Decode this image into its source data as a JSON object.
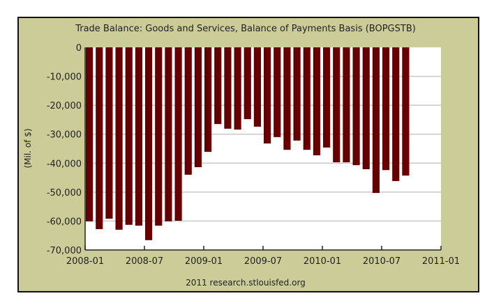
{
  "chart_data": {
    "type": "bar",
    "title": "Trade Balance: Goods and Services, Balance of Payments Basis (BOPGSTB)",
    "ylabel": "(Mil. of $)",
    "xlabel": "",
    "footer": "2011 research.stlouisfed.org",
    "ylim": [
      -70000,
      0
    ],
    "yticks": [
      "0",
      "-10,000",
      "-20,000",
      "-30,000",
      "-40,000",
      "-50,000",
      "-60,000",
      "-70,000"
    ],
    "ytick_values": [
      0,
      -10000,
      -20000,
      -30000,
      -40000,
      -50000,
      -60000,
      -70000
    ],
    "xticks": [
      "2008-01",
      "2008-07",
      "2009-01",
      "2009-07",
      "2010-01",
      "2010-07",
      "2011-01"
    ],
    "x_start": "2008-01",
    "x_months_span": 36,
    "grid": true,
    "bar_color": "#660000",
    "values": [
      -60100,
      -62800,
      -59200,
      -63000,
      -61300,
      -61600,
      -66600,
      -61600,
      -60100,
      -59900,
      -44000,
      -41400,
      -36100,
      -26500,
      -28100,
      -28400,
      -24800,
      -27400,
      -33200,
      -31000,
      -35400,
      -32200,
      -35400,
      -37300,
      -34600,
      -39700,
      -39700,
      -40700,
      -42100,
      -50300,
      -42400,
      -46200,
      -44300
    ]
  }
}
